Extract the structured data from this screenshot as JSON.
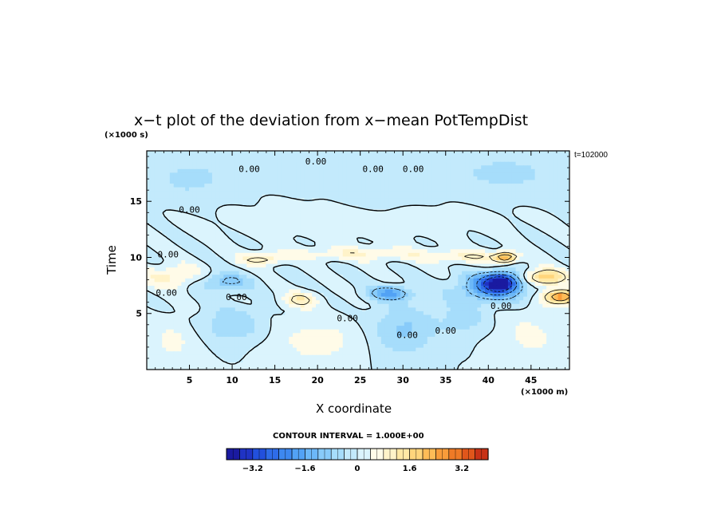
{
  "chart_data": {
    "type": "heatmap",
    "title": "x−t plot of the deviation from x−mean PotTempDist",
    "xlabel": "X coordinate",
    "ylabel": "Time",
    "x_unit": "(×1000 m)",
    "y_unit": "(×1000 s)",
    "time_stamp": "t=102000",
    "xlim": [
      0,
      49.5
    ],
    "ylim": [
      0,
      19.5
    ],
    "x_ticks": [
      5,
      10,
      15,
      20,
      25,
      30,
      35,
      40,
      45
    ],
    "y_ticks": [
      5,
      10,
      15
    ],
    "contour_interval_text": "CONTOUR INTERVAL = 1.000E+00",
    "contour_labels": [
      {
        "text": "0.00",
        "x": 12.0,
        "y": 17.6
      },
      {
        "text": "0.00",
        "x": 19.8,
        "y": 18.3
      },
      {
        "text": "0.00",
        "x": 26.5,
        "y": 17.6
      },
      {
        "text": "0.00",
        "x": 31.2,
        "y": 17.6
      },
      {
        "text": "0.00",
        "x": 5.0,
        "y": 14.0
      },
      {
        "text": "0.00",
        "x": 2.5,
        "y": 10.0
      },
      {
        "text": "0.00",
        "x": 2.3,
        "y": 6.6
      },
      {
        "text": "0.00",
        "x": 10.5,
        "y": 6.2
      },
      {
        "text": "0.00",
        "x": 23.5,
        "y": 4.3
      },
      {
        "text": "0.00",
        "x": 30.5,
        "y": 2.8
      },
      {
        "text": "0.00",
        "x": 35.0,
        "y": 3.2
      },
      {
        "text": "0.00",
        "x": 41.5,
        "y": 5.4
      }
    ],
    "colorbar": {
      "range": [
        -4.0,
        4.0
      ],
      "step": 0.2,
      "tick_labels": [
        "−3.2",
        "−1.6",
        "0",
        "1.6",
        "3.2"
      ],
      "tick_values": [
        -3.2,
        -1.6,
        0,
        1.6,
        3.2
      ],
      "colors": [
        "#1a1aa0",
        "#1f33c4",
        "#2250dd",
        "#2e6ce8",
        "#3d88f0",
        "#52a2f5",
        "#6cb8f8",
        "#88cbfa",
        "#a6ddfb",
        "#c3eafc",
        "#dbf4fd",
        "#fffbe8",
        "#fff3c9",
        "#ffe8a5",
        "#ffd57c",
        "#ffbc57",
        "#f99c3a",
        "#ef7a26",
        "#e0561b",
        "#c83216"
      ]
    },
    "features": [
      {
        "x": 41.5,
        "y": 7.8,
        "value": -3.2,
        "sx": 2.0,
        "sy": 0.8
      },
      {
        "x": 40.5,
        "y": 7.3,
        "value": -2.0,
        "sx": 4.0,
        "sy": 1.2
      },
      {
        "x": 28.5,
        "y": 6.8,
        "value": -1.8,
        "sx": 2.5,
        "sy": 0.6
      },
      {
        "x": 46.5,
        "y": 8.2,
        "value": 2.2,
        "sx": 2.5,
        "sy": 0.7
      },
      {
        "x": 42.0,
        "y": 10.0,
        "value": 2.8,
        "sx": 1.2,
        "sy": 0.4
      },
      {
        "x": 48.5,
        "y": 6.5,
        "value": 3.0,
        "sx": 1.8,
        "sy": 0.6
      },
      {
        "x": 18.0,
        "y": 6.2,
        "value": 1.2,
        "sx": 2.0,
        "sy": 0.7
      },
      {
        "x": 13.5,
        "y": 9.8,
        "value": 1.2,
        "sx": 2.5,
        "sy": 0.5
      },
      {
        "x": 9.0,
        "y": 7.8,
        "value": -1.2,
        "sx": 3.0,
        "sy": 0.8
      },
      {
        "x": 3.0,
        "y": 8.3,
        "value": 1.0,
        "sx": 3.5,
        "sy": 1.0
      },
      {
        "x": 10.0,
        "y": 4.0,
        "value": -0.8,
        "sx": 3.5,
        "sy": 1.5
      },
      {
        "x": 30.0,
        "y": 3.5,
        "value": -0.9,
        "sx": 3.5,
        "sy": 2.2
      },
      {
        "x": 37.0,
        "y": 4.5,
        "value": -0.6,
        "sx": 3.0,
        "sy": 1.5
      },
      {
        "x": 20.0,
        "y": 2.5,
        "value": 0.6,
        "sx": 5.0,
        "sy": 2.0
      },
      {
        "x": 45.0,
        "y": 3.0,
        "value": 0.5,
        "sx": 4.0,
        "sy": 2.5
      },
      {
        "x": 3.0,
        "y": 2.5,
        "value": 0.5,
        "sx": 3.0,
        "sy": 2.0
      },
      {
        "x": 25.0,
        "y": 10.3,
        "value": 0.8,
        "sx": 10.0,
        "sy": 0.6
      },
      {
        "x": 38.0,
        "y": 10.0,
        "value": 0.8,
        "sx": 5.0,
        "sy": 0.6
      },
      {
        "x": 20.0,
        "y": 18.0,
        "value": -0.4,
        "sx": 8.0,
        "sy": 1.5
      },
      {
        "x": 42.0,
        "y": 17.5,
        "value": -0.5,
        "sx": 8.0,
        "sy": 2.0
      },
      {
        "x": 5.0,
        "y": 17.0,
        "value": -0.5,
        "sx": 5.0,
        "sy": 2.0
      },
      {
        "x": 27.0,
        "y": 15.5,
        "value": -0.4,
        "sx": 4.0,
        "sy": 1.2
      },
      {
        "x": 25.0,
        "y": 13.0,
        "value": 0.3,
        "sx": 15.0,
        "sy": 1.5
      }
    ]
  }
}
